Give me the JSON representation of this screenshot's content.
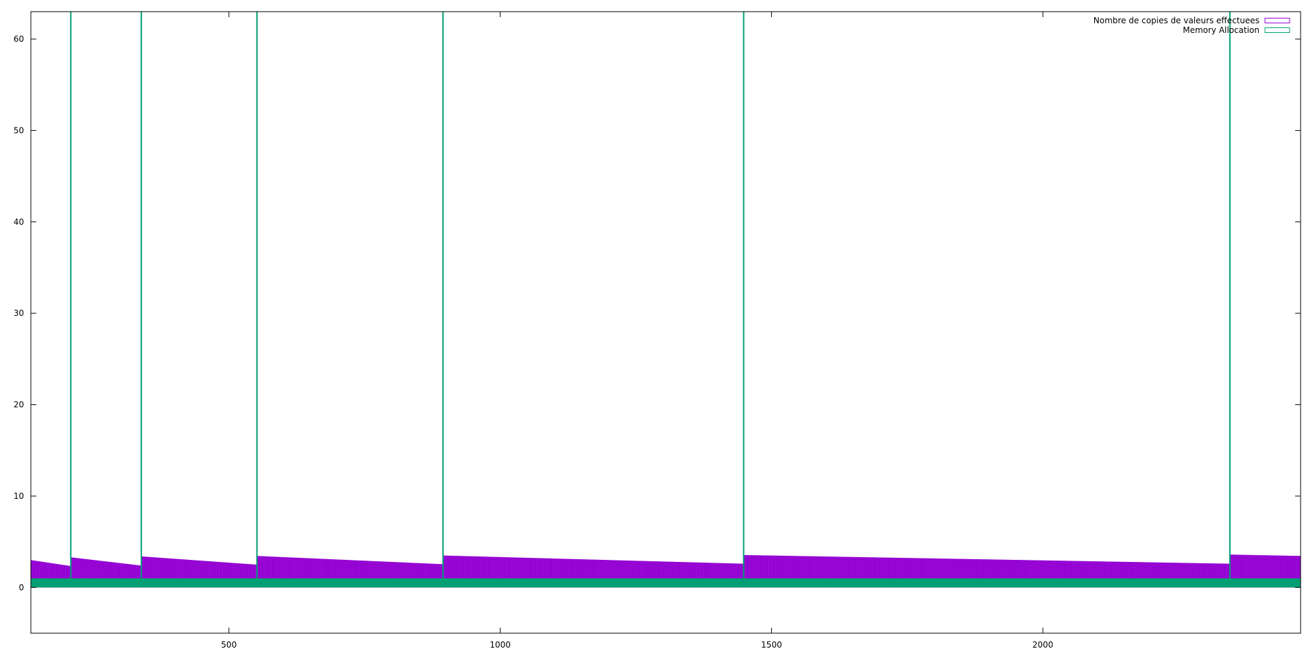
{
  "chart_data": {
    "type": "bar",
    "title": "",
    "xlabel": "",
    "ylabel": "",
    "xlim": [
      135,
      2475
    ],
    "ylim": [
      -5,
      63
    ],
    "xticks": [
      500,
      1000,
      1500,
      2000
    ],
    "yticks": [
      0,
      10,
      20,
      30,
      40,
      50,
      60
    ],
    "grid": false,
    "legend_position": "top-right",
    "series": [
      {
        "name": "Nombre de copies de valeurs effectuees",
        "color": "#9400d3",
        "style": "impulses",
        "segments": [
          {
            "x_start": 135,
            "x_end": 208,
            "y_start": 3.0,
            "y_end": 2.35
          },
          {
            "x_start": 209,
            "x_end": 338,
            "y_start": 3.3,
            "y_end": 2.4
          },
          {
            "x_start": 339,
            "x_end": 551,
            "y_start": 3.4,
            "y_end": 2.5
          },
          {
            "x_start": 552,
            "x_end": 894,
            "y_start": 3.45,
            "y_end": 2.55
          },
          {
            "x_start": 895,
            "x_end": 1448,
            "y_start": 3.5,
            "y_end": 2.6
          },
          {
            "x_start": 1449,
            "x_end": 2344,
            "y_start": 3.55,
            "y_end": 2.6
          },
          {
            "x_start": 2345,
            "x_end": 2475,
            "y_start": 3.6,
            "y_end": 3.45
          }
        ]
      },
      {
        "name": "Memory Allocation",
        "color": "#009e73",
        "style": "impulses",
        "baseline_value": 1,
        "spikes_x": [
          208,
          338,
          551,
          894,
          1448,
          2344
        ],
        "spike_value": 63
      }
    ]
  }
}
